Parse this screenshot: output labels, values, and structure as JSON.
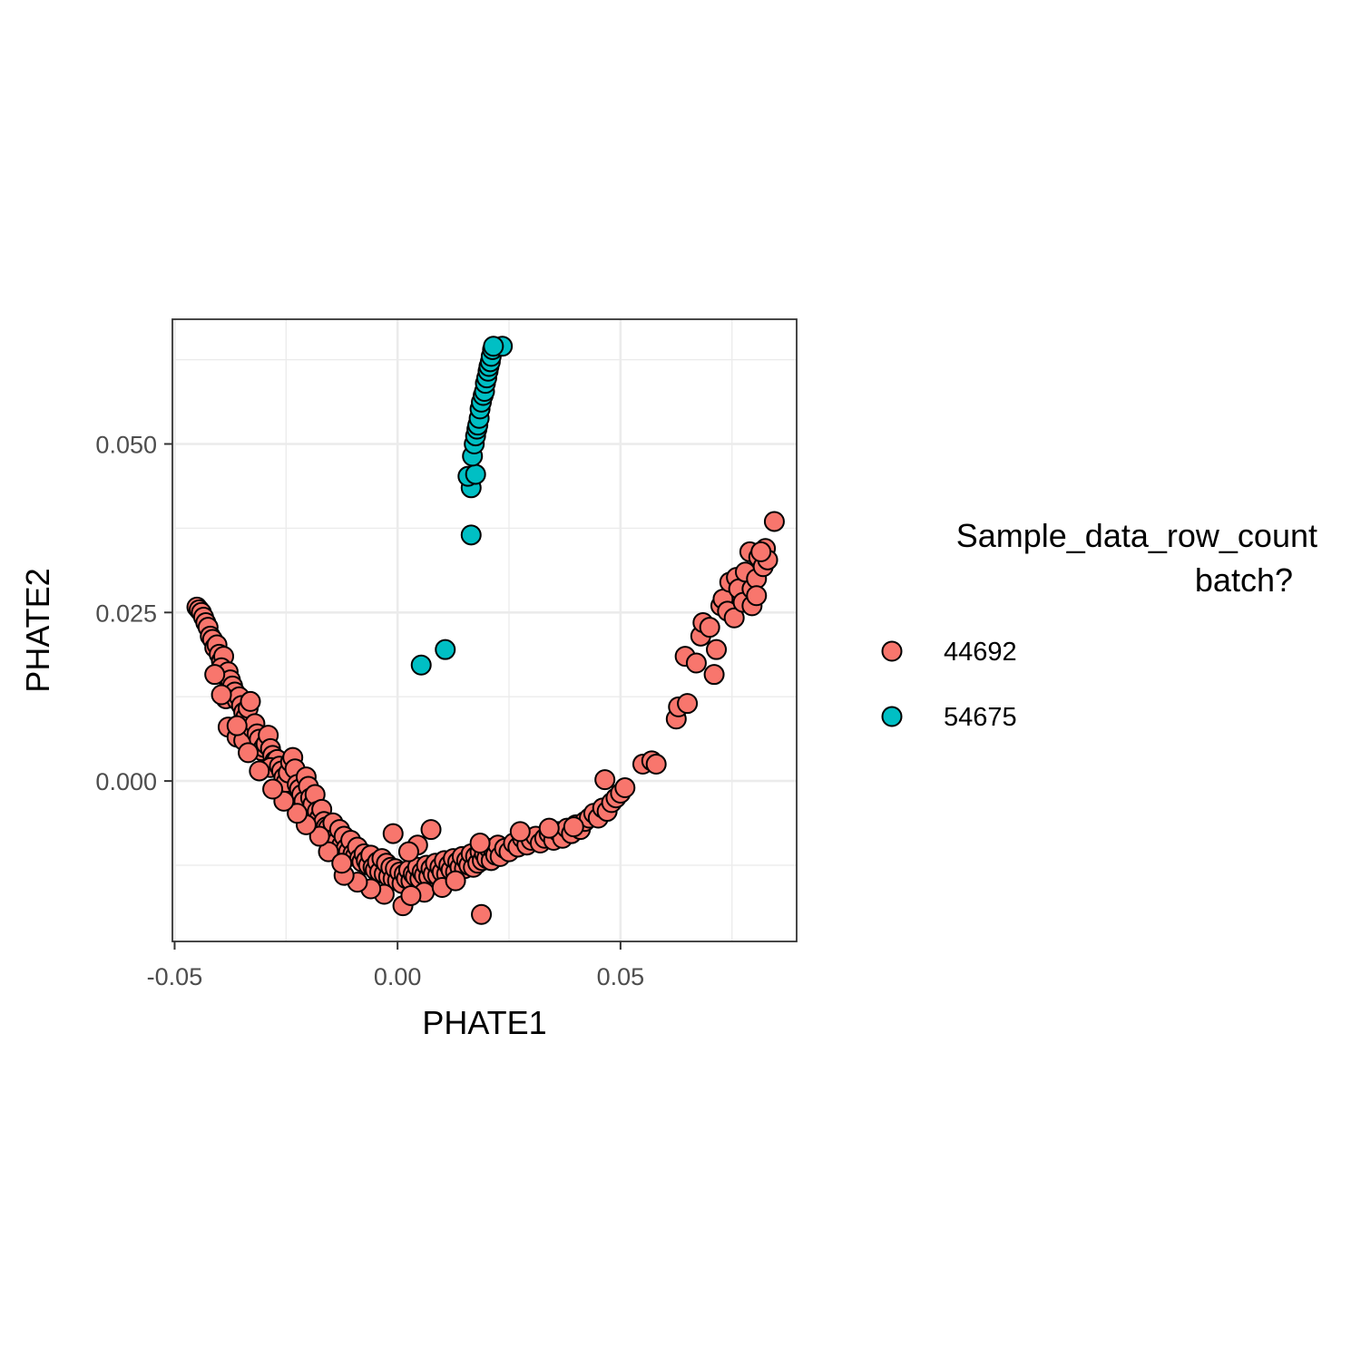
{
  "chart_data": {
    "type": "scatter",
    "title": "",
    "xlabel": "PHATE1",
    "ylabel": "PHATE2",
    "xlim": [
      -0.0505,
      0.0895
    ],
    "ylim": [
      -0.0238,
      0.0685
    ],
    "x_ticks": [
      -0.05,
      0.0,
      0.05
    ],
    "x_tick_labels": [
      "-0.05",
      "0.00",
      "0.05"
    ],
    "y_ticks": [
      0.0,
      0.025,
      0.05
    ],
    "y_tick_labels": [
      "0.000",
      "0.025",
      "0.050"
    ],
    "grid": true,
    "legend": {
      "title_lines": [
        "Sample_data_row_count",
        "batch?"
      ],
      "position": "right"
    },
    "series": [
      {
        "name": "44692",
        "color": "#F8766D",
        "points": [
          [
            -0.045,
            0.0258
          ],
          [
            -0.0445,
            0.0254
          ],
          [
            -0.044,
            0.025
          ],
          [
            -0.0435,
            0.0243
          ],
          [
            -0.043,
            0.0235
          ],
          [
            -0.0425,
            0.0228
          ],
          [
            -0.042,
            0.0215
          ],
          [
            -0.0415,
            0.021
          ],
          [
            -0.041,
            0.0198
          ],
          [
            -0.0405,
            0.0202
          ],
          [
            -0.04,
            0.0188
          ],
          [
            -0.0395,
            0.0178
          ],
          [
            -0.039,
            0.0185
          ],
          [
            -0.0395,
            0.0168
          ],
          [
            -0.0385,
            0.0155
          ],
          [
            -0.038,
            0.0162
          ],
          [
            -0.0375,
            0.015
          ],
          [
            -0.037,
            0.0141
          ],
          [
            -0.0365,
            0.0132
          ],
          [
            -0.0385,
            0.0122
          ],
          [
            -0.036,
            0.012
          ],
          [
            -0.0355,
            0.0125
          ],
          [
            -0.035,
            0.0112
          ],
          [
            -0.0345,
            0.0102
          ],
          [
            -0.034,
            0.0095
          ],
          [
            -0.0335,
            0.0108
          ],
          [
            -0.033,
            0.0118
          ],
          [
            -0.038,
            0.008
          ],
          [
            -0.036,
            0.0065
          ],
          [
            -0.0345,
            0.006
          ],
          [
            -0.0325,
            0.0078
          ],
          [
            -0.032,
            0.0085
          ],
          [
            -0.0315,
            0.007
          ],
          [
            -0.031,
            0.0062
          ],
          [
            -0.0305,
            0.0045
          ],
          [
            -0.03,
            0.005
          ],
          [
            -0.0295,
            0.0055
          ],
          [
            -0.029,
            0.0068
          ],
          [
            -0.0285,
            0.0048
          ],
          [
            -0.028,
            0.0038
          ],
          [
            -0.0275,
            0.003
          ],
          [
            -0.027,
            0.0032
          ],
          [
            -0.0285,
            0.002
          ],
          [
            -0.0265,
            0.0022
          ],
          [
            -0.026,
            0.0015
          ],
          [
            -0.0255,
            0.0005
          ],
          [
            -0.025,
            -0.0002
          ],
          [
            -0.0245,
            0.0012
          ],
          [
            -0.024,
            0.0028
          ],
          [
            -0.0235,
            0.0035
          ],
          [
            -0.023,
            0.0018
          ],
          [
            -0.0225,
            -0.0005
          ],
          [
            -0.022,
            -0.0012
          ],
          [
            -0.0215,
            -0.002
          ],
          [
            -0.021,
            -0.003
          ],
          [
            -0.0205,
            0.0006
          ],
          [
            -0.02,
            -0.0008
          ],
          [
            -0.0195,
            -0.0025
          ],
          [
            -0.019,
            -0.0035
          ],
          [
            -0.0185,
            -0.002
          ],
          [
            -0.018,
            -0.0045
          ],
          [
            -0.0175,
            -0.0055
          ],
          [
            -0.017,
            -0.0042
          ],
          [
            -0.0165,
            -0.006
          ],
          [
            -0.016,
            -0.0068
          ],
          [
            -0.0155,
            -0.007
          ],
          [
            -0.015,
            -0.0078
          ],
          [
            -0.0145,
            -0.0062
          ],
          [
            -0.014,
            -0.0085
          ],
          [
            -0.0135,
            -0.009
          ],
          [
            -0.013,
            -0.0072
          ],
          [
            -0.0125,
            -0.0095
          ],
          [
            -0.012,
            -0.0082
          ],
          [
            -0.0115,
            -0.01
          ],
          [
            -0.011,
            -0.0105
          ],
          [
            -0.0105,
            -0.0088
          ],
          [
            -0.01,
            -0.0108
          ],
          [
            -0.0095,
            -0.0112
          ],
          [
            -0.009,
            -0.0098
          ],
          [
            -0.0085,
            -0.0115
          ],
          [
            -0.008,
            -0.012
          ],
          [
            -0.0075,
            -0.0108
          ],
          [
            -0.007,
            -0.0118
          ],
          [
            -0.0065,
            -0.0125
          ],
          [
            -0.006,
            -0.011
          ],
          [
            -0.0055,
            -0.0128
          ],
          [
            -0.005,
            -0.0132
          ],
          [
            -0.0045,
            -0.012
          ],
          [
            -0.004,
            -0.0135
          ],
          [
            -0.0035,
            -0.0115
          ],
          [
            -0.003,
            -0.0138
          ],
          [
            -0.0025,
            -0.0122
          ],
          [
            -0.002,
            -0.0142
          ],
          [
            -0.0015,
            -0.0128
          ],
          [
            -0.001,
            -0.0145
          ],
          [
            -0.0005,
            -0.013
          ],
          [
            0.0,
            -0.0148
          ],
          [
            0.0005,
            -0.0135
          ],
          [
            0.001,
            -0.0152
          ],
          [
            0.0015,
            -0.0138
          ],
          [
            0.002,
            -0.0145
          ],
          [
            0.0025,
            -0.0132
          ],
          [
            0.003,
            -0.0148
          ],
          [
            0.0035,
            -0.0138
          ],
          [
            0.004,
            -0.0142
          ],
          [
            0.0045,
            -0.0128
          ],
          [
            0.005,
            -0.0145
          ],
          [
            0.0055,
            -0.0135
          ],
          [
            0.006,
            -0.014
          ],
          [
            0.0065,
            -0.0125
          ],
          [
            0.007,
            -0.0142
          ],
          [
            0.0075,
            -0.013
          ],
          [
            0.008,
            -0.0138
          ],
          [
            0.0085,
            -0.0122
          ],
          [
            0.009,
            -0.014
          ],
          [
            0.0095,
            -0.0128
          ],
          [
            0.01,
            -0.0135
          ],
          [
            0.0105,
            -0.0118
          ],
          [
            0.011,
            -0.0138
          ],
          [
            0.0115,
            -0.0125
          ],
          [
            0.012,
            -0.0132
          ],
          [
            0.0125,
            -0.0115
          ],
          [
            0.013,
            -0.0135
          ],
          [
            0.0135,
            -0.012
          ],
          [
            0.014,
            -0.0128
          ],
          [
            0.0145,
            -0.0112
          ],
          [
            0.015,
            -0.013
          ],
          [
            0.0155,
            -0.0118
          ],
          [
            0.016,
            -0.0125
          ],
          [
            0.0165,
            -0.0108
          ],
          [
            0.017,
            -0.0128
          ],
          [
            0.0175,
            -0.0112
          ],
          [
            0.018,
            -0.0122
          ],
          [
            0.0185,
            -0.0105
          ],
          [
            0.019,
            -0.0118
          ],
          [
            0.0195,
            -0.0108
          ],
          [
            0.02,
            -0.0115
          ],
          [
            0.0205,
            -0.01
          ],
          [
            0.021,
            -0.0118
          ],
          [
            0.0215,
            -0.0102
          ],
          [
            0.022,
            -0.011
          ],
          [
            0.0225,
            -0.0095
          ],
          [
            0.023,
            -0.0112
          ],
          [
            0.024,
            -0.01
          ],
          [
            0.025,
            -0.0105
          ],
          [
            0.026,
            -0.0092
          ],
          [
            0.027,
            -0.0098
          ],
          [
            0.028,
            -0.0085
          ],
          [
            0.029,
            -0.0095
          ],
          [
            0.03,
            -0.0088
          ],
          [
            0.031,
            -0.0082
          ],
          [
            0.032,
            -0.0092
          ],
          [
            0.033,
            -0.0085
          ],
          [
            0.034,
            -0.0078
          ],
          [
            0.035,
            -0.0088
          ],
          [
            0.036,
            -0.0075
          ],
          [
            0.037,
            -0.0085
          ],
          [
            0.038,
            -0.007
          ],
          [
            0.039,
            -0.0078
          ],
          [
            0.04,
            -0.0065
          ],
          [
            0.041,
            -0.0072
          ],
          [
            0.042,
            -0.006
          ],
          [
            0.043,
            -0.0055
          ],
          [
            0.044,
            -0.0048
          ],
          [
            0.045,
            -0.0055
          ],
          [
            0.046,
            -0.004
          ],
          [
            0.047,
            -0.0045
          ],
          [
            0.048,
            -0.0032
          ],
          [
            0.049,
            -0.0025
          ],
          [
            0.05,
            -0.0018
          ],
          [
            0.051,
            -0.001
          ],
          [
            0.0465,
            0.0002
          ],
          [
            0.055,
            0.0025
          ],
          [
            0.057,
            0.003
          ],
          [
            0.058,
            0.0025
          ],
          [
            0.0625,
            0.0092
          ],
          [
            0.063,
            0.011
          ],
          [
            0.065,
            0.0115
          ],
          [
            0.0645,
            0.0185
          ],
          [
            0.067,
            0.0175
          ],
          [
            0.068,
            0.0215
          ],
          [
            0.0685,
            0.0235
          ],
          [
            0.07,
            0.0228
          ],
          [
            0.071,
            0.0158
          ],
          [
            0.0715,
            0.0195
          ],
          [
            0.0725,
            0.026
          ],
          [
            0.073,
            0.027
          ],
          [
            0.074,
            0.0252
          ],
          [
            0.0745,
            0.0295
          ],
          [
            0.0755,
            0.0242
          ],
          [
            0.076,
            0.0302
          ],
          [
            0.0765,
            0.0285
          ],
          [
            0.0775,
            0.0265
          ],
          [
            0.078,
            0.031
          ],
          [
            0.079,
            0.034
          ],
          [
            0.0795,
            0.0285
          ],
          [
            0.0805,
            0.03
          ],
          [
            0.081,
            0.0332
          ],
          [
            0.082,
            0.0318
          ],
          [
            0.0825,
            0.0345
          ],
          [
            0.083,
            0.0328
          ],
          [
            0.0845,
            0.0385
          ],
          [
            0.0795,
            0.026
          ],
          [
            0.0805,
            0.0275
          ],
          [
            0.0815,
            0.034
          ],
          [
            0.0188,
            -0.0198
          ],
          [
            0.0012,
            -0.0185
          ],
          [
            -0.003,
            -0.0168
          ],
          [
            -0.006,
            -0.016
          ],
          [
            0.006,
            -0.0165
          ],
          [
            0.01,
            -0.0158
          ],
          [
            0.013,
            -0.0148
          ],
          [
            -0.009,
            -0.015
          ],
          [
            -0.012,
            -0.014
          ],
          [
            0.003,
            -0.017
          ],
          [
            -0.0155,
            -0.0105
          ],
          [
            -0.0125,
            -0.0122
          ],
          [
            -0.0175,
            -0.0082
          ],
          [
            -0.0205,
            -0.0065
          ],
          [
            -0.0225,
            -0.0048
          ],
          [
            -0.0255,
            -0.003
          ],
          [
            -0.028,
            -0.0012
          ],
          [
            -0.031,
            0.0015
          ],
          [
            -0.0335,
            0.0042
          ],
          [
            -0.036,
            0.0082
          ],
          [
            -0.0395,
            0.0128
          ],
          [
            -0.041,
            0.0158
          ],
          [
            0.0045,
            -0.0095
          ],
          [
            0.0075,
            -0.0072
          ],
          [
            0.0025,
            -0.0105
          ],
          [
            -0.001,
            -0.0078
          ],
          [
            0.0185,
            -0.0092
          ],
          [
            0.0275,
            -0.0075
          ],
          [
            0.034,
            -0.007
          ],
          [
            0.0395,
            -0.0068
          ]
        ]
      },
      {
        "name": "54675",
        "color": "#00BFC4",
        "points": [
          [
            0.0053,
            0.0172
          ],
          [
            0.0107,
            0.0195
          ],
          [
            0.0165,
            0.0365
          ],
          [
            0.0165,
            0.0435
          ],
          [
            0.0158,
            0.0452
          ],
          [
            0.0175,
            0.0455
          ],
          [
            0.0168,
            0.0482
          ],
          [
            0.0172,
            0.05
          ],
          [
            0.0175,
            0.0512
          ],
          [
            0.0178,
            0.0522
          ],
          [
            0.018,
            0.0528
          ],
          [
            0.0183,
            0.0538
          ],
          [
            0.0185,
            0.0552
          ],
          [
            0.0188,
            0.0562
          ],
          [
            0.0192,
            0.0572
          ],
          [
            0.0195,
            0.0578
          ],
          [
            0.0197,
            0.059
          ],
          [
            0.02,
            0.0598
          ],
          [
            0.0203,
            0.0608
          ],
          [
            0.0205,
            0.0615
          ],
          [
            0.0208,
            0.0622
          ],
          [
            0.021,
            0.063
          ],
          [
            0.0213,
            0.064
          ],
          [
            0.0235,
            0.0645
          ],
          [
            0.0215,
            0.0645
          ]
        ]
      }
    ]
  }
}
